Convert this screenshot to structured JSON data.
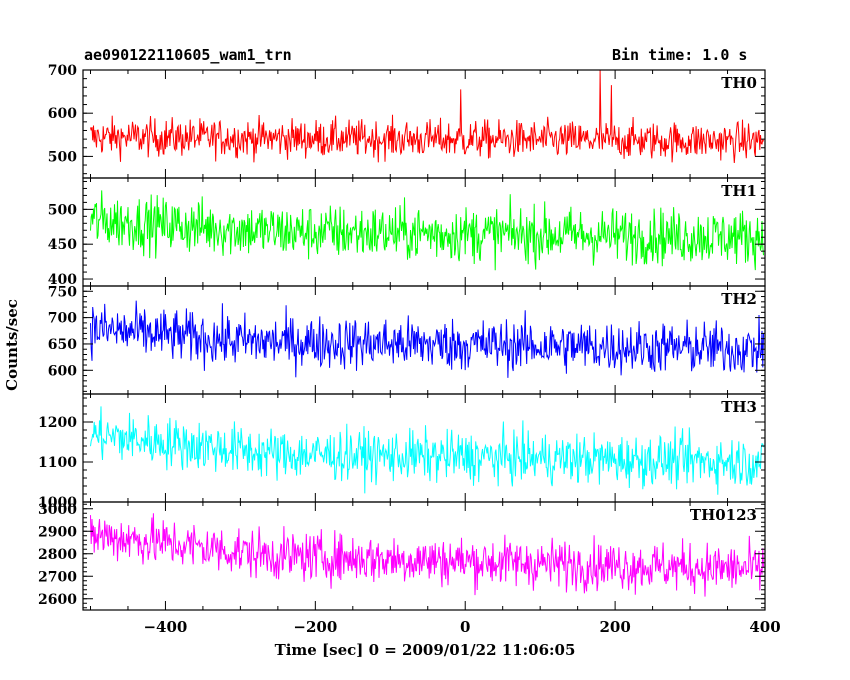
{
  "header": {
    "title": "ae090122110605_wam1_trn",
    "bin_time": "Bin time: 1.0 s"
  },
  "axes": {
    "ylabel": "Counts/sec",
    "xlabel": "Time [sec] 0 = 2009/01/22 11:06:05"
  },
  "chart_data": {
    "type": "line",
    "title": "ae090122110605_wam1_trn",
    "xlabel": "Time [sec] 0 = 2009/01/22 11:06:05",
    "ylabel": "Counts/sec",
    "xlim": [
      -510,
      400
    ],
    "x_ticks": [
      -400,
      -200,
      0,
      200,
      400
    ],
    "x_tick_labels": [
      "−400",
      "−200",
      "0",
      "200",
      "400"
    ],
    "x_step": 1,
    "panels": [
      {
        "name": "TH0",
        "color": "#ff0000",
        "ylim": [
          450,
          700
        ],
        "y_ticks": [
          500,
          600,
          700
        ],
        "trend": [
          [
            -510,
            545
          ],
          [
            400,
            535
          ]
        ],
        "noise": 22,
        "spikes": [
          [
            -6,
            655
          ],
          [
            180,
            700
          ],
          [
            195,
            665
          ]
        ]
      },
      {
        "name": "TH1",
        "color": "#00ff00",
        "ylim": [
          390,
          545
        ],
        "y_ticks": [
          400,
          450,
          500
        ],
        "trend": [
          [
            -510,
            485
          ],
          [
            -250,
            468
          ],
          [
            400,
            460
          ]
        ],
        "noise": 20,
        "spikes": []
      },
      {
        "name": "TH2",
        "color": "#0000ff",
        "ylim": [
          555,
          760
        ],
        "y_ticks": [
          600,
          650,
          700,
          750
        ],
        "trend": [
          [
            -510,
            680
          ],
          [
            -300,
            655
          ],
          [
            400,
            640
          ]
        ],
        "noise": 25,
        "spikes": []
      },
      {
        "name": "TH3",
        "color": "#00ffff",
        "ylim": [
          1000,
          1270
        ],
        "y_ticks": [
          1000,
          1100,
          1200
        ],
        "trend": [
          [
            -510,
            1170
          ],
          [
            -250,
            1120
          ],
          [
            400,
            1100
          ]
        ],
        "noise": 32,
        "spikes": []
      },
      {
        "name": "TH0123",
        "color": "#ff00ff",
        "ylim": [
          2550,
          3030
        ],
        "y_ticks": [
          2600,
          2700,
          2800,
          2900,
          3000
        ],
        "trend": [
          [
            -510,
            2890
          ],
          [
            -250,
            2790
          ],
          [
            400,
            2730
          ]
        ],
        "noise": 55,
        "spikes": []
      }
    ]
  }
}
